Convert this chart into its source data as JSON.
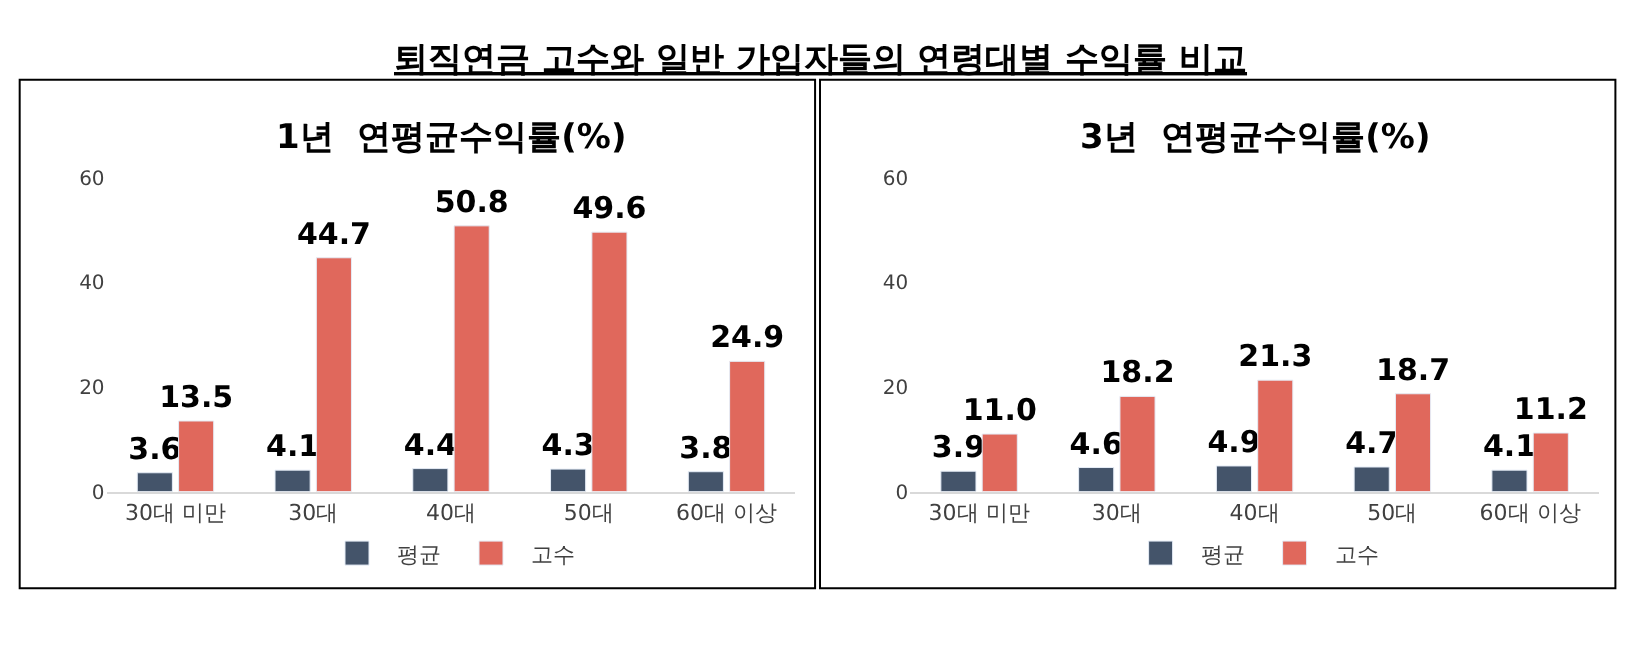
{
  "chart_data": [
    {
      "type": "bar",
      "title": "1년  연평균수익률(%)",
      "annotations": [
        "퇴직연금 고수와 일반 가입자들의 연령대별 수익률 비교"
      ],
      "categories": [
        "30대 미만",
        "30대",
        "40대",
        "50대",
        "60대 이상"
      ],
      "series": [
        {
          "name": "평균",
          "color": "#44546a",
          "values": [
            3.6,
            4.1,
            4.4,
            4.3,
            3.8
          ],
          "value_labels": [
            "3.6",
            "4.1",
            "4.4",
            "4.3",
            "3.8"
          ]
        },
        {
          "name": "고수",
          "color": "#e0685c",
          "values": [
            13.5,
            44.7,
            50.8,
            49.6,
            24.9
          ],
          "value_labels": [
            "13.5",
            "44.7",
            "50.8",
            "49.6",
            "24.9"
          ]
        }
      ],
      "ylim": [
        0,
        60
      ],
      "yticks": [
        0,
        20,
        40,
        60
      ],
      "legend": "bottom"
    },
    {
      "type": "bar",
      "title": "3년  연평균수익률(%)",
      "categories": [
        "30대 미만",
        "30대",
        "40대",
        "50대",
        "60대 이상"
      ],
      "series": [
        {
          "name": "평균",
          "color": "#44546a",
          "values": [
            3.9,
            4.6,
            4.9,
            4.7,
            4.1
          ],
          "value_labels": [
            "3.9",
            "4.6",
            "4.9",
            "4.7",
            "4.1"
          ]
        },
        {
          "name": "고수",
          "color": "#e0685c",
          "values": [
            11.0,
            18.2,
            21.3,
            18.7,
            11.2
          ],
          "value_labels": [
            "11.0",
            "18.2",
            "21.3",
            "18.7",
            "11.2"
          ]
        }
      ],
      "ylim": [
        0,
        60
      ],
      "yticks": [
        0,
        20,
        40,
        60
      ],
      "legend": "bottom"
    }
  ]
}
